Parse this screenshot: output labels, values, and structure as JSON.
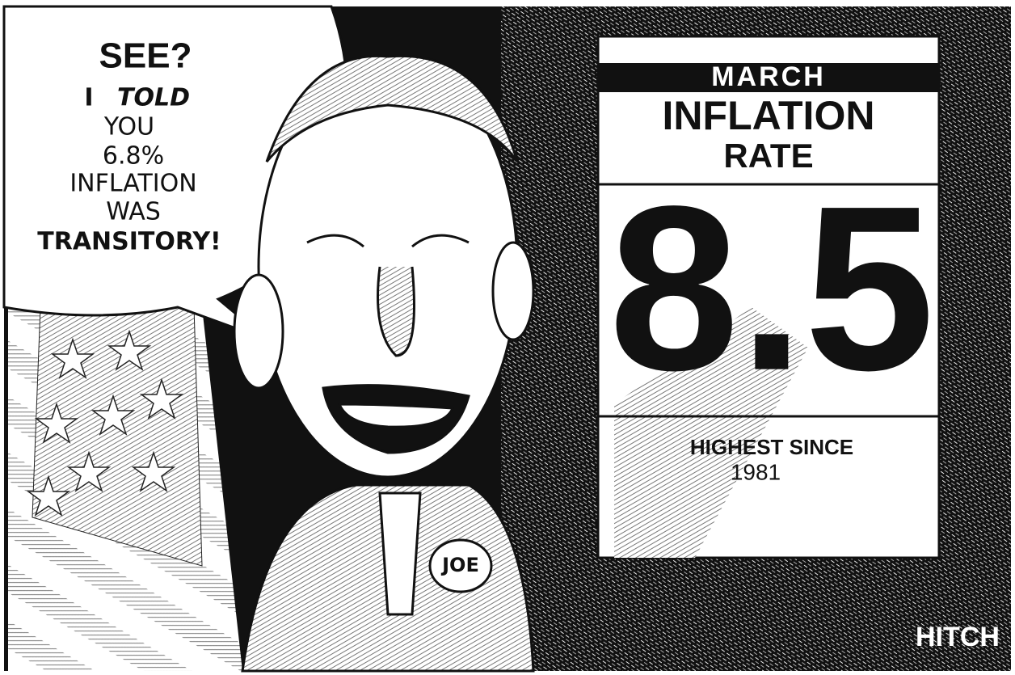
{
  "speech_bubble": {
    "lines": [
      "SEE?",
      "I",
      "TOLD",
      "YOU",
      "6.8%",
      "INFLATION",
      "WAS",
      "TRANSITORY!"
    ]
  },
  "sign": {
    "header": "MARCH",
    "title": [
      "INFLATION",
      "RATE"
    ],
    "value": "8.5",
    "footer": [
      "HIGHEST SINCE",
      "1981"
    ]
  },
  "button": "JOE",
  "signature": "HITCH"
}
